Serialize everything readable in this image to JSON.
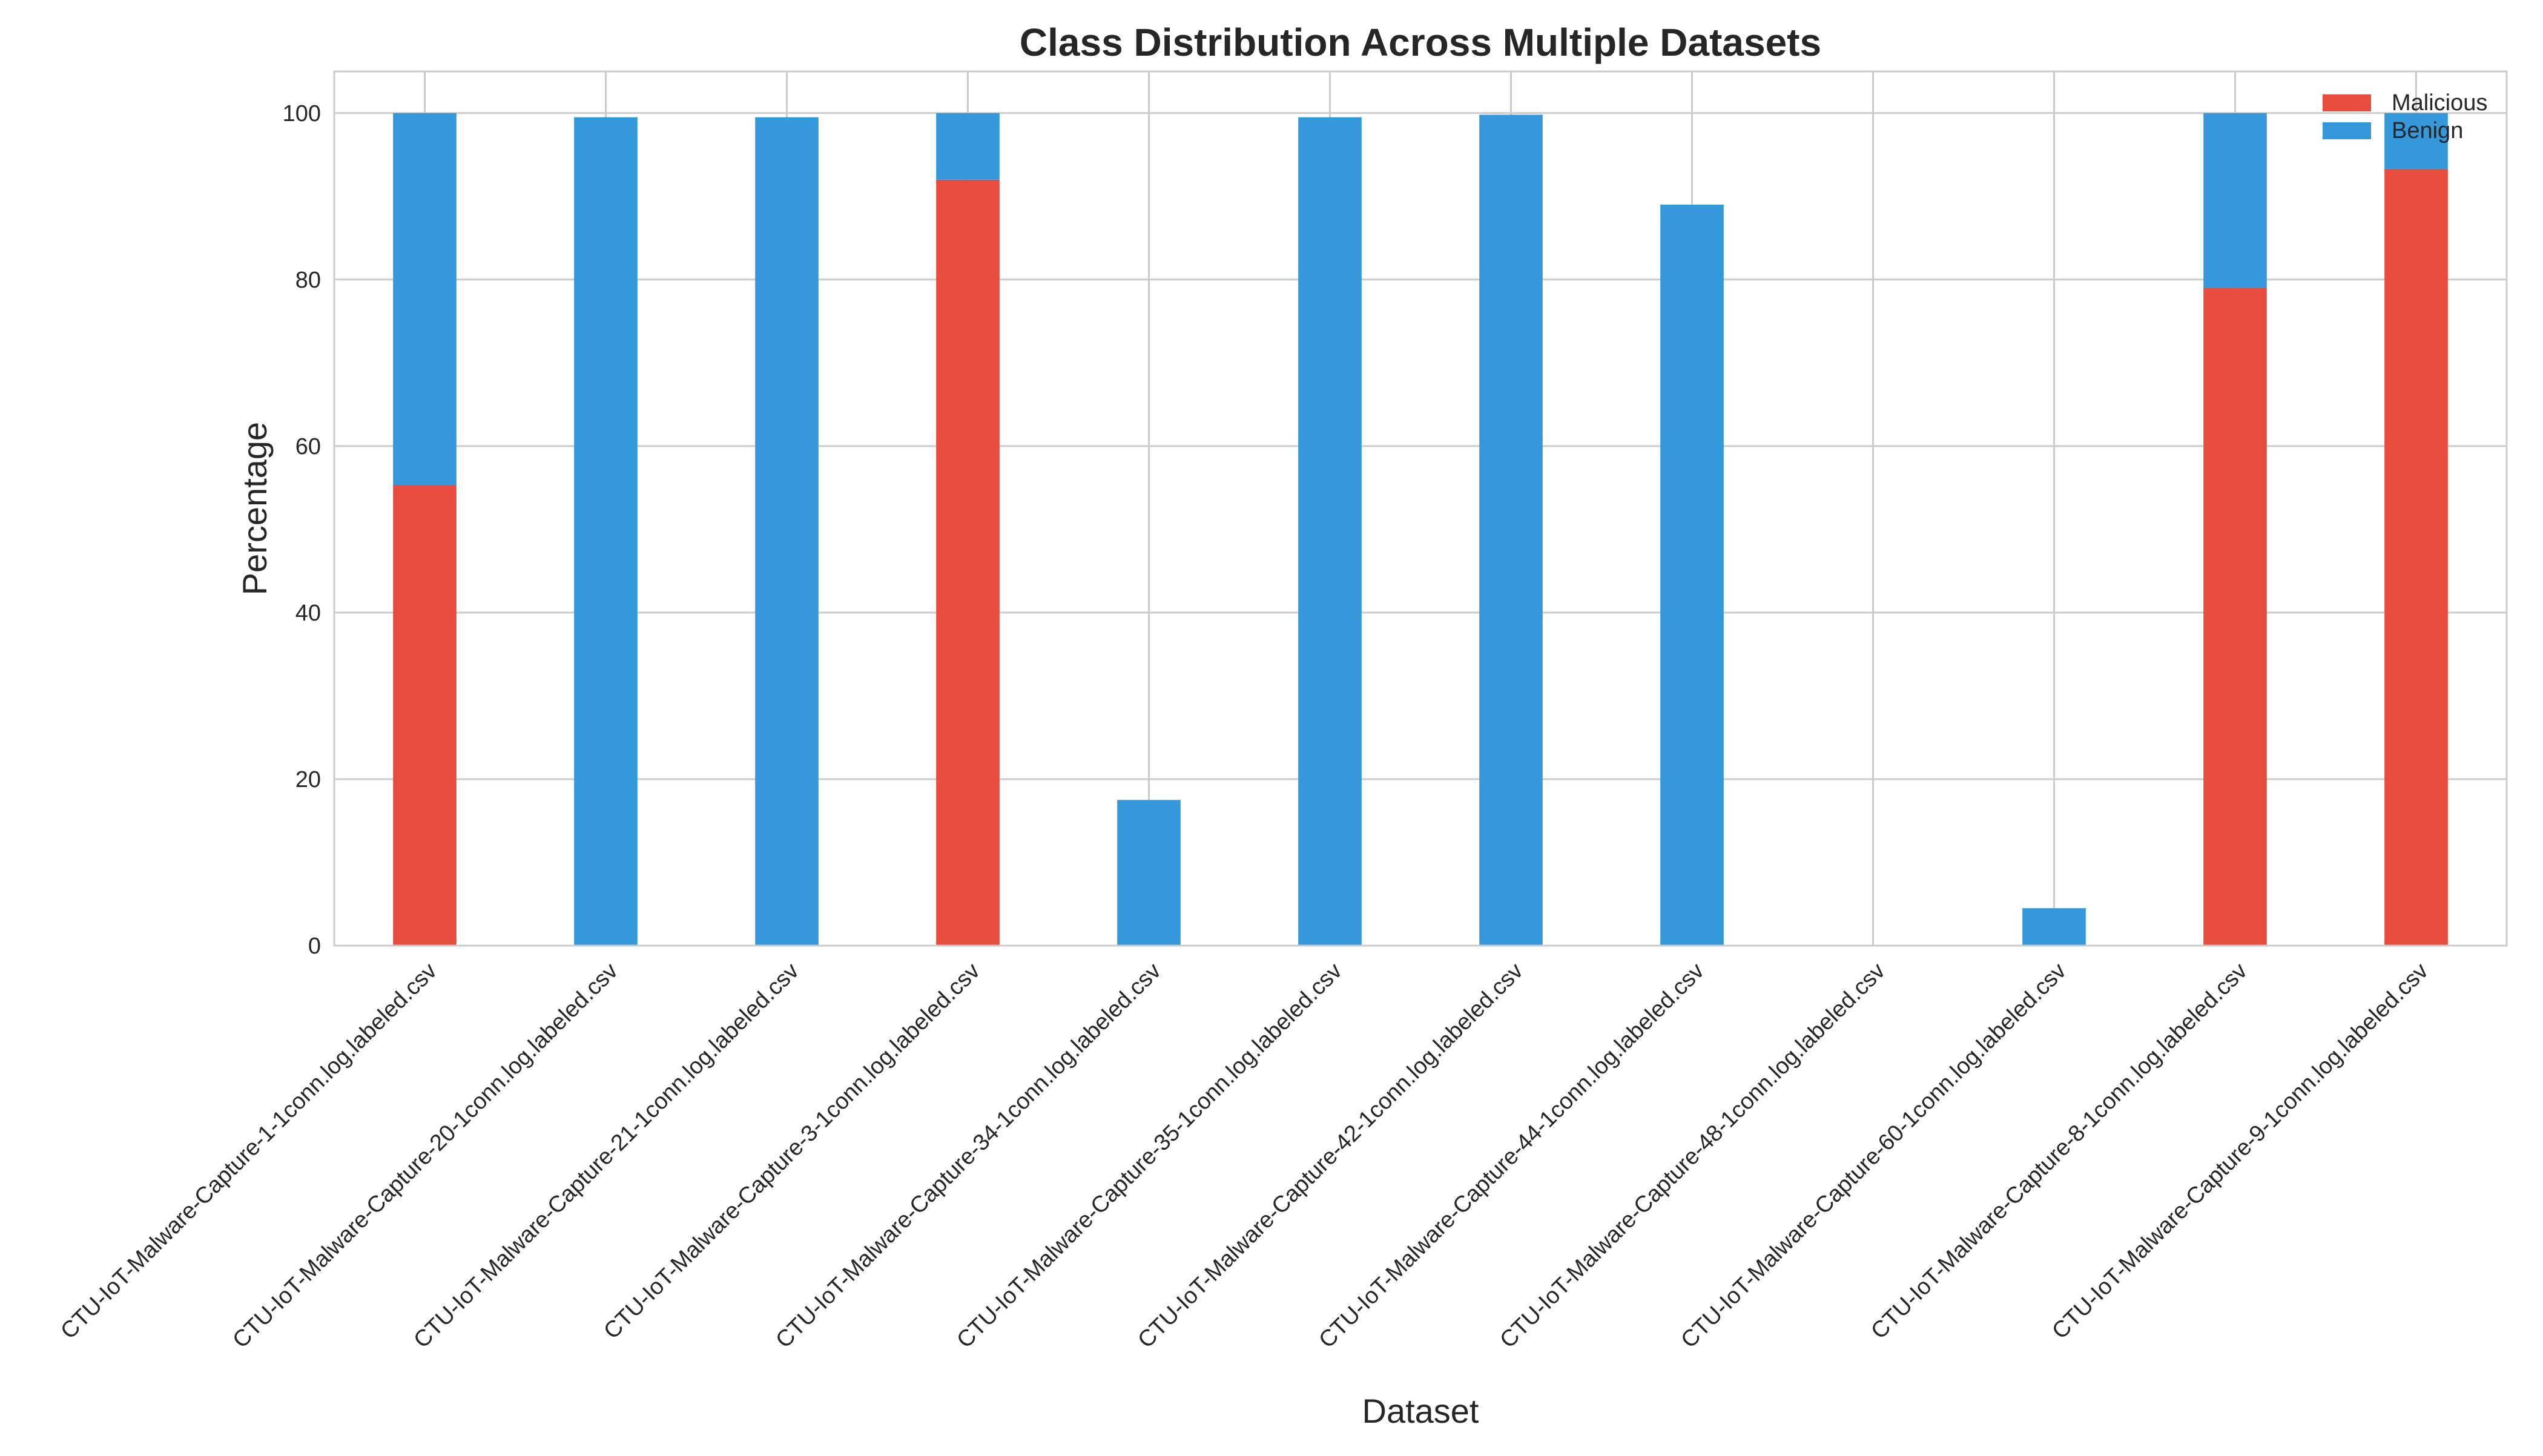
{
  "chart_data": {
    "type": "bar",
    "stacked": true,
    "title": "Class Distribution Across Multiple Datasets",
    "xlabel": "Dataset",
    "ylabel": "Percentage",
    "ylim": [
      0,
      105
    ],
    "yticks": [
      0,
      20,
      40,
      60,
      80,
      100
    ],
    "grid": true,
    "legend": "top-right",
    "categories": [
      "CTU-IoT-Malware-Capture-1-1conn.log.labeled.csv",
      "CTU-IoT-Malware-Capture-20-1conn.log.labeled.csv",
      "CTU-IoT-Malware-Capture-21-1conn.log.labeled.csv",
      "CTU-IoT-Malware-Capture-3-1conn.log.labeled.csv",
      "CTU-IoT-Malware-Capture-34-1conn.log.labeled.csv",
      "CTU-IoT-Malware-Capture-35-1conn.log.labeled.csv",
      "CTU-IoT-Malware-Capture-42-1conn.log.labeled.csv",
      "CTU-IoT-Malware-Capture-44-1conn.log.labeled.csv",
      "CTU-IoT-Malware-Capture-48-1conn.log.labeled.csv",
      "CTU-IoT-Malware-Capture-60-1conn.log.labeled.csv",
      "CTU-IoT-Malware-Capture-8-1conn.log.labeled.csv",
      "CTU-IoT-Malware-Capture-9-1conn.log.labeled.csv"
    ],
    "series": [
      {
        "name": "Malicious",
        "color": "#e74c3c",
        "values": [
          55.3,
          0,
          0,
          92.0,
          0,
          0,
          0,
          0,
          0,
          0,
          79.0,
          93.3
        ]
      },
      {
        "name": "Benign",
        "color": "#3498db",
        "values": [
          44.7,
          99.5,
          99.5,
          8.0,
          17.5,
          99.5,
          99.8,
          89.0,
          0,
          4.5,
          21.0,
          6.7
        ]
      }
    ]
  }
}
